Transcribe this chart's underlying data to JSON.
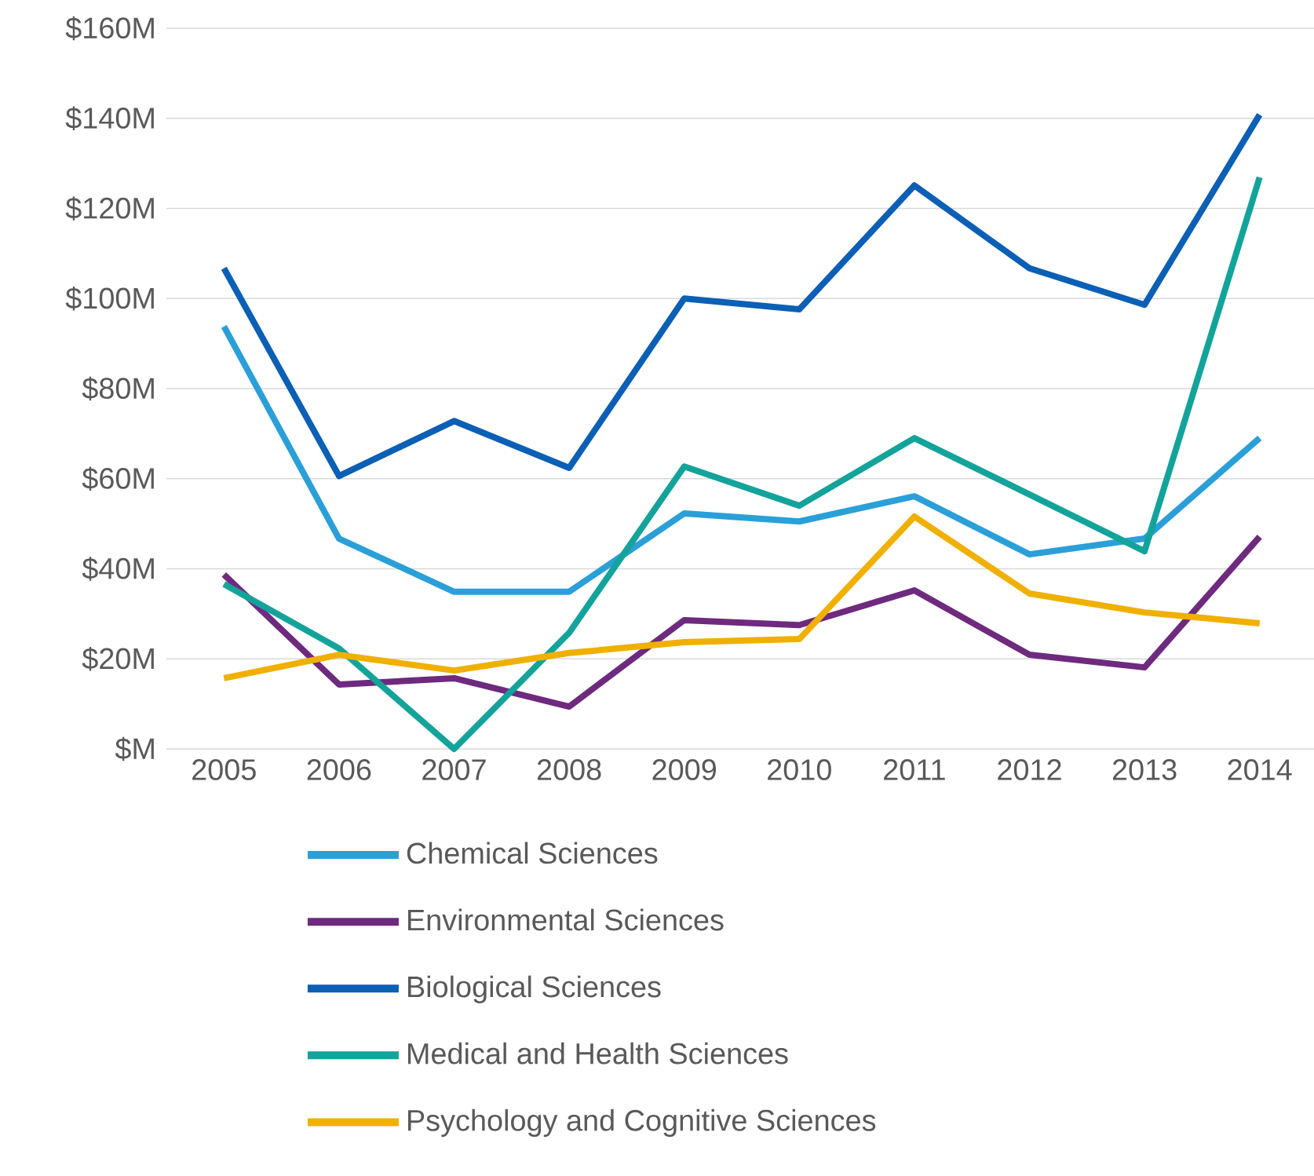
{
  "chart_data": {
    "type": "line",
    "categories": [
      "2005",
      "2006",
      "2007",
      "2008",
      "2009",
      "2010",
      "2011",
      "2012",
      "2013",
      "2014"
    ],
    "series": [
      {
        "name": "Chemical Sciences",
        "color": "#2a9fd8",
        "values": [
          93.8,
          46.7,
          34.9,
          34.9,
          52.3,
          50.5,
          56.1,
          43.2,
          46.7,
          69.0
        ]
      },
      {
        "name": "Environmental Sciences",
        "color": "#6e2a7e",
        "values": [
          38.7,
          14.3,
          15.7,
          9.4,
          28.6,
          27.5,
          35.2,
          20.9,
          18.1,
          47.1
        ]
      },
      {
        "name": "Biological Sciences",
        "color": "#0b5fb5",
        "values": [
          106.7,
          60.6,
          72.8,
          62.4,
          100.0,
          97.6,
          125.1,
          106.7,
          98.6,
          140.8
        ]
      },
      {
        "name": "Medical and Health Sciences",
        "color": "#13a39a",
        "values": [
          36.6,
          22.3,
          0.0,
          25.8,
          62.7,
          54.0,
          69.0,
          56.5,
          43.9,
          126.9
        ]
      },
      {
        "name": "Psychology and Cognitive Sciences",
        "color": "#f0b000",
        "values": [
          15.7,
          20.9,
          17.4,
          21.3,
          23.7,
          24.4,
          51.6,
          34.5,
          30.3,
          27.9
        ]
      }
    ],
    "ylim": [
      0,
      160
    ],
    "yticks": [
      {
        "value": 0,
        "label": "$M"
      },
      {
        "value": 20,
        "label": "$20M"
      },
      {
        "value": 40,
        "label": "$40M"
      },
      {
        "value": 60,
        "label": "$60M"
      },
      {
        "value": 80,
        "label": "$80M"
      },
      {
        "value": 100,
        "label": "$100M"
      },
      {
        "value": 120,
        "label": "$120M"
      },
      {
        "value": 140,
        "label": "$140M"
      },
      {
        "value": 160,
        "label": "$160M"
      }
    ],
    "grid": "y",
    "legend": "bottom",
    "marker": "none",
    "line_style": "solid"
  }
}
